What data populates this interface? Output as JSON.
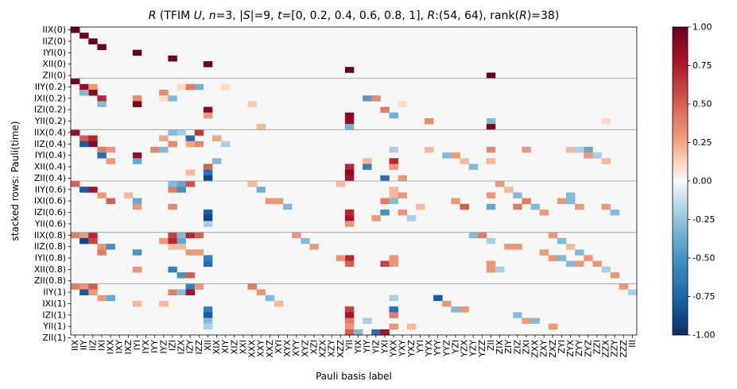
{
  "chart_data": {
    "type": "heatmap",
    "title": "R (TFIM U, n=3, |S|=9, t=[0, 0.2, 0.4, 0.6, 0.8, 1], R:(54, 64), rank(R)=38)",
    "title_parts": {
      "R_symbol": "R",
      "paren_open": " (TFIM ",
      "U_symbol": "U",
      "sep1": ", ",
      "n_symbol": "n",
      "n_eq": "=3, |",
      "S_symbol": "S",
      "S_eq": "|=9, ",
      "t_symbol": "t",
      "t_eq": "=[0, 0.2, 0.4, 0.6, 0.8, 1], ",
      "R2_symbol": "R",
      "shape_text": ":(54, 64), rank(",
      "R3_symbol": "R",
      "rank_text": ")=38)"
    },
    "xlabel": "Pauli basis label",
    "ylabel": "stacked rows: Pauli(time)",
    "times": [
      "0",
      "0.2",
      "0.4",
      "0.6",
      "0.8",
      "1"
    ],
    "subset_paulis": [
      "IIX",
      "IIY",
      "IIZ",
      "IXI",
      "IYI",
      "IZI",
      "XII",
      "YII",
      "ZII"
    ],
    "x_tick_labels": [
      "IIX",
      "IIY",
      "IIZ",
      "IXI",
      "IXX",
      "IXY",
      "IXZ",
      "IYI",
      "IYX",
      "IYY",
      "IYZ",
      "IZI",
      "IZX",
      "IZY",
      "IZZ",
      "XII",
      "XIX",
      "XIY",
      "XIZ",
      "XXI",
      "XXX",
      "XXY",
      "XXZ",
      "XYI",
      "XYX",
      "XYY",
      "XYZ",
      "XZI",
      "XZX",
      "XZY",
      "XZZ",
      "YII",
      "YIX",
      "YIY",
      "YIZ",
      "YXI",
      "YXX",
      "YXY",
      "YXZ",
      "YYI",
      "YYX",
      "YYY",
      "YYZ",
      "YZI",
      "YZX",
      "YZY",
      "YZZ",
      "ZII",
      "ZIX",
      "ZIY",
      "ZIZ",
      "ZXI",
      "ZXX",
      "ZXY",
      "ZXZ",
      "ZYI",
      "ZYX",
      "ZYY",
      "ZYZ",
      "ZZI",
      "ZZX",
      "ZZY",
      "ZZZ",
      "III"
    ],
    "y_tick_labels": [
      "IIX(0)",
      "IIZ(0)",
      "IYI(0)",
      "XII(0)",
      "ZII(0)",
      "IIY(0.2)",
      "IXI(0.2)",
      "IZI(0.2)",
      "YII(0.2)",
      "IIX(0.4)",
      "IIZ(0.4)",
      "IYI(0.4)",
      "XII(0.4)",
      "ZII(0.4)",
      "IIY(0.6)",
      "IXI(0.6)",
      "IZI(0.6)",
      "YII(0.6)",
      "IIX(0.8)",
      "IIZ(0.8)",
      "IYI(0.8)",
      "XII(0.8)",
      "ZII(0.8)",
      "IIY(1)",
      "IXI(1)",
      "IZI(1)",
      "YII(1)",
      "ZII(1)"
    ],
    "n_rows": 54,
    "n_cols": 64,
    "value_range": [
      -1.0,
      1.0
    ],
    "colormap": "RdBu_r",
    "colorbar_ticks": [
      "-1.00",
      "-0.75",
      "-0.50",
      "-0.25",
      "0.00",
      "0.25",
      "0.50",
      "0.75",
      "1.00"
    ],
    "block_separators_after_rows": [
      8,
      17,
      26,
      35,
      44
    ],
    "identity_block": "rows 0-8 are the identity: value 1.00 at row k, column of subset Pauli k",
    "cells": [
      [
        0,
        0,
        1.0
      ],
      [
        1,
        1,
        1.0
      ],
      [
        2,
        2,
        1.0
      ],
      [
        3,
        3,
        1.0
      ],
      [
        4,
        7,
        1.0
      ],
      [
        5,
        11,
        1.0
      ],
      [
        6,
        15,
        1.0
      ],
      [
        7,
        31,
        1.0
      ],
      [
        8,
        47,
        1.0
      ],
      [
        9,
        0,
        0.95
      ],
      [
        10,
        1,
        0.85
      ],
      [
        10,
        2,
        0.3
      ],
      [
        11,
        2,
        0.9
      ],
      [
        11,
        1,
        -0.3
      ],
      [
        12,
        3,
        0.7
      ],
      [
        12,
        7,
        0.35
      ],
      [
        13,
        7,
        0.95
      ],
      [
        13,
        3,
        -0.3
      ],
      [
        14,
        15,
        0.9
      ],
      [
        15,
        15,
        0.3
      ],
      [
        15,
        31,
        0.9
      ],
      [
        16,
        31,
        0.85
      ],
      [
        16,
        47,
        -0.3
      ],
      [
        17,
        47,
        0.95
      ],
      [
        17,
        31,
        -0.35
      ],
      [
        10,
        12,
        0.1
      ],
      [
        10,
        13,
        0.4
      ],
      [
        10,
        14,
        -0.35
      ],
      [
        11,
        10,
        0.35
      ],
      [
        12,
        10,
        0.1
      ],
      [
        12,
        11,
        -0.3
      ],
      [
        13,
        20,
        0.15
      ],
      [
        14,
        35,
        0.4
      ],
      [
        15,
        36,
        -0.35
      ],
      [
        16,
        40,
        0.35
      ],
      [
        12,
        33,
        -0.45
      ],
      [
        12,
        34,
        0.35
      ],
      [
        13,
        37,
        0.1
      ],
      [
        16,
        60,
        0.1
      ],
      [
        17,
        21,
        0.2
      ],
      [
        18,
        0,
        0.85
      ],
      [
        19,
        1,
        0.5
      ],
      [
        19,
        2,
        0.7
      ],
      [
        20,
        1,
        -0.8
      ],
      [
        20,
        2,
        0.9
      ],
      [
        21,
        3,
        0.4
      ],
      [
        21,
        4,
        0.3
      ],
      [
        22,
        3,
        -0.7
      ],
      [
        22,
        7,
        0.85
      ],
      [
        23,
        7,
        -0.4
      ],
      [
        23,
        4,
        0.3
      ],
      [
        24,
        15,
        0.5
      ],
      [
        24,
        31,
        0.7
      ],
      [
        25,
        15,
        -0.7
      ],
      [
        25,
        31,
        0.9
      ],
      [
        26,
        15,
        -0.9
      ],
      [
        26,
        31,
        0.8
      ],
      [
        18,
        11,
        -0.3
      ],
      [
        18,
        12,
        -0.2
      ],
      [
        18,
        14,
        0.65
      ],
      [
        19,
        10,
        0.25
      ],
      [
        19,
        13,
        -0.7
      ],
      [
        20,
        11,
        0.35
      ],
      [
        20,
        13,
        0.25
      ],
      [
        20,
        14,
        0.35
      ],
      [
        21,
        9,
        0.35
      ],
      [
        21,
        10,
        -0.3
      ],
      [
        21,
        36,
        -0.2
      ],
      [
        21,
        47,
        0.35
      ],
      [
        21,
        51,
        0.3
      ],
      [
        21,
        58,
        -0.4
      ],
      [
        23,
        33,
        0.2
      ],
      [
        23,
        36,
        0.7
      ],
      [
        23,
        47,
        0.2
      ],
      [
        24,
        33,
        -0.6
      ],
      [
        24,
        36,
        0.3
      ],
      [
        25,
        13,
        0.2
      ],
      [
        26,
        35,
        -0.7
      ],
      [
        26,
        37,
        0.3
      ],
      [
        27,
        0,
        0.5
      ],
      [
        27,
        11,
        -0.3
      ],
      [
        27,
        12,
        -0.4
      ],
      [
        27,
        13,
        0.55
      ],
      [
        28,
        1,
        -0.8
      ],
      [
        28,
        2,
        0.8
      ],
      [
        28,
        11,
        0.4
      ],
      [
        28,
        12,
        -0.5
      ],
      [
        29,
        3,
        0.3
      ],
      [
        29,
        6,
        0.2
      ],
      [
        30,
        4,
        0.5
      ],
      [
        30,
        7,
        -0.4
      ],
      [
        31,
        7,
        0.3
      ],
      [
        31,
        11,
        0.35
      ],
      [
        32,
        15,
        -0.8
      ],
      [
        32,
        31,
        0.7
      ],
      [
        33,
        15,
        -0.9
      ],
      [
        33,
        31,
        0.8
      ],
      [
        34,
        15,
        -0.2
      ],
      [
        34,
        31,
        0.3
      ],
      [
        27,
        30,
        0.2
      ],
      [
        28,
        36,
        0.2
      ],
      [
        29,
        36,
        0.2
      ],
      [
        29,
        37,
        0.3
      ],
      [
        29,
        47,
        0.3
      ],
      [
        29,
        56,
        -0.3
      ],
      [
        30,
        35,
        0.4
      ],
      [
        30,
        36,
        -0.3
      ],
      [
        30,
        43,
        0.3
      ],
      [
        31,
        39,
        0.2
      ],
      [
        31,
        44,
        0.5
      ],
      [
        31,
        47,
        -0.4
      ],
      [
        31,
        50,
        0.4
      ],
      [
        32,
        35,
        -0.5
      ],
      [
        32,
        37,
        0.3
      ],
      [
        33,
        34,
        0.3
      ],
      [
        33,
        38,
        -0.2
      ],
      [
        36,
        0,
        0.4
      ],
      [
        36,
        1,
        0.3
      ],
      [
        36,
        2,
        0.7
      ],
      [
        37,
        1,
        -0.9
      ],
      [
        37,
        2,
        0.6
      ],
      [
        38,
        3,
        0.3
      ],
      [
        38,
        4,
        -0.5
      ],
      [
        39,
        7,
        -0.5
      ],
      [
        39,
        3,
        0.4
      ],
      [
        40,
        15,
        -0.6
      ],
      [
        40,
        31,
        0.7
      ],
      [
        41,
        15,
        -0.7
      ],
      [
        41,
        31,
        0.5
      ],
      [
        42,
        7,
        0.3
      ],
      [
        42,
        11,
        -0.6
      ],
      [
        43,
        12,
        -0.5
      ],
      [
        43,
        13,
        0.5
      ],
      [
        36,
        11,
        0.6
      ],
      [
        36,
        12,
        -0.3
      ],
      [
        36,
        13,
        0.7
      ],
      [
        36,
        14,
        0.5
      ],
      [
        37,
        10,
        0.3
      ],
      [
        37,
        11,
        0.7
      ],
      [
        37,
        12,
        -0.4
      ],
      [
        38,
        11,
        0.2
      ],
      [
        38,
        12,
        0.2
      ],
      [
        39,
        13,
        0.3
      ],
      [
        39,
        14,
        0.3
      ],
      [
        40,
        30,
        0.3
      ],
      [
        40,
        36,
        0.3
      ],
      [
        41,
        35,
        0.6
      ],
      [
        41,
        36,
        0.3
      ],
      [
        41,
        47,
        0.3
      ],
      [
        42,
        47,
        0.3
      ],
      [
        42,
        48,
        -0.2
      ],
      [
        45,
        0,
        0.4
      ],
      [
        45,
        1,
        0.3
      ],
      [
        45,
        2,
        0.5
      ],
      [
        46,
        1,
        -0.8
      ],
      [
        46,
        2,
        0.3
      ],
      [
        47,
        3,
        0.3
      ],
      [
        47,
        4,
        -0.4
      ],
      [
        48,
        7,
        0.2
      ],
      [
        49,
        15,
        -0.6
      ],
      [
        49,
        31,
        0.6
      ],
      [
        50,
        15,
        -0.8
      ],
      [
        50,
        31,
        0.8
      ],
      [
        51,
        15,
        -0.3
      ],
      [
        51,
        31,
        0.4
      ],
      [
        52,
        15,
        -0.2
      ],
      [
        52,
        31,
        0.3
      ],
      [
        53,
        31,
        0.5
      ],
      [
        53,
        32,
        -0.3
      ],
      [
        45,
        13,
        -0.6
      ],
      [
        45,
        14,
        0.3
      ],
      [
        46,
        11,
        0.4
      ],
      [
        46,
        12,
        -0.3
      ],
      [
        46,
        13,
        0.8
      ],
      [
        47,
        36,
        -0.2
      ],
      [
        48,
        10,
        0.2
      ],
      [
        49,
        36,
        -0.7
      ],
      [
        50,
        36,
        0.4
      ],
      [
        51,
        33,
        -0.2
      ],
      [
        52,
        36,
        0.3
      ],
      [
        52,
        38,
        0.2
      ],
      [
        53,
        34,
        -0.7
      ],
      [
        53,
        35,
        0.8
      ],
      [
        10,
        17,
        0.1
      ],
      [
        19,
        16,
        0.25
      ],
      [
        20,
        17,
        -0.2
      ],
      [
        23,
        16,
        -0.3
      ],
      [
        27,
        20,
        0.2
      ],
      [
        28,
        21,
        -0.35
      ],
      [
        30,
        22,
        0.3
      ],
      [
        30,
        23,
        0.3
      ],
      [
        31,
        24,
        -0.3
      ],
      [
        36,
        25,
        0.3
      ],
      [
        37,
        26,
        -0.3
      ],
      [
        38,
        27,
        0.3
      ],
      [
        45,
        20,
        0.4
      ],
      [
        46,
        21,
        0.3
      ],
      [
        47,
        22,
        -0.3
      ],
      [
        48,
        23,
        0.2
      ],
      [
        21,
        40,
        0.2
      ],
      [
        22,
        42,
        -0.3
      ],
      [
        22,
        43,
        0.3
      ],
      [
        23,
        44,
        0.2
      ],
      [
        24,
        45,
        -0.3
      ],
      [
        27,
        48,
        0.3
      ],
      [
        28,
        49,
        0.2
      ],
      [
        29,
        50,
        -0.3
      ],
      [
        30,
        51,
        0.4
      ],
      [
        31,
        52,
        -0.3
      ],
      [
        32,
        53,
        0.3
      ],
      [
        36,
        54,
        0.3
      ],
      [
        37,
        55,
        -0.3
      ],
      [
        38,
        56,
        0.2
      ],
      [
        39,
        57,
        -0.3
      ],
      [
        40,
        58,
        0.3
      ],
      [
        41,
        59,
        0.3
      ],
      [
        42,
        60,
        -0.2
      ],
      [
        43,
        61,
        0.3
      ],
      [
        45,
        62,
        0.3
      ],
      [
        46,
        63,
        -0.2
      ],
      [
        21,
        56,
        0.2
      ],
      [
        21,
        57,
        -0.2
      ],
      [
        22,
        58,
        0.3
      ],
      [
        22,
        59,
        -0.2
      ],
      [
        23,
        60,
        0.2
      ],
      [
        30,
        55,
        0.3
      ],
      [
        30,
        56,
        -0.3
      ],
      [
        31,
        57,
        0.3
      ],
      [
        31,
        60,
        0.3
      ],
      [
        32,
        61,
        -0.3
      ],
      [
        36,
        45,
        -0.3
      ],
      [
        36,
        46,
        0.4
      ],
      [
        37,
        47,
        -0.2
      ],
      [
        38,
        49,
        0.3
      ],
      [
        38,
        50,
        0.3
      ],
      [
        39,
        53,
        0.3
      ],
      [
        40,
        54,
        0.3
      ],
      [
        40,
        55,
        -0.3
      ],
      [
        41,
        56,
        -0.3
      ],
      [
        41,
        57,
        0.3
      ],
      [
        47,
        41,
        -0.8
      ],
      [
        48,
        42,
        0.3
      ],
      [
        49,
        43,
        -0.3
      ],
      [
        49,
        44,
        0.3
      ],
      [
        50,
        50,
        -0.3
      ],
      [
        51,
        51,
        0.3
      ],
      [
        51,
        52,
        -0.3
      ],
      [
        52,
        54,
        0.3
      ]
    ]
  }
}
